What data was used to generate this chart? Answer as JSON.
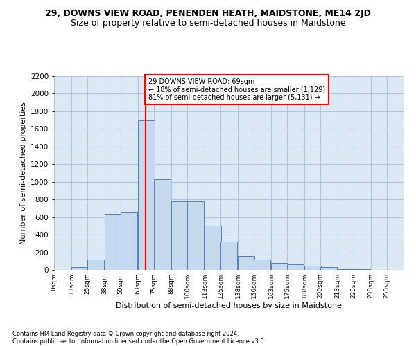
{
  "title": "29, DOWNS VIEW ROAD, PENENDEN HEATH, MAIDSTONE, ME14 2JD",
  "subtitle": "Size of property relative to semi-detached houses in Maidstone",
  "xlabel": "Distribution of semi-detached houses by size in Maidstone",
  "ylabel": "Number of semi-detached properties",
  "footer_line1": "Contains HM Land Registry data © Crown copyright and database right 2024.",
  "footer_line2": "Contains public sector information licensed under the Open Government Licence v3.0.",
  "annotation_text": "29 DOWNS VIEW ROAD: 69sqm\n← 18% of semi-detached houses are smaller (1,129)\n81% of semi-detached houses are larger (5,131) →",
  "bar_left_edges": [
    0,
    13,
    25,
    38,
    50,
    63,
    75,
    88,
    100,
    113,
    125,
    138,
    150,
    163,
    175,
    188,
    200,
    213,
    225,
    238
  ],
  "bar_heights": [
    0,
    30,
    120,
    640,
    650,
    1700,
    1030,
    780,
    780,
    500,
    320,
    160,
    115,
    80,
    60,
    50,
    30,
    10,
    5,
    2
  ],
  "bar_width": 12.5,
  "bar_face_color": "#c5d8ed",
  "bar_edge_color": "#4f81bd",
  "vline_x": 69,
  "vline_color": "red",
  "ylim": [
    0,
    2200
  ],
  "xlim_min": 0,
  "xlim_max": 262.5,
  "yticks": [
    0,
    200,
    400,
    600,
    800,
    1000,
    1200,
    1400,
    1600,
    1800,
    2000,
    2200
  ],
  "xtick_labels": [
    "0sqm",
    "13sqm",
    "25sqm",
    "38sqm",
    "50sqm",
    "63sqm",
    "75sqm",
    "88sqm",
    "100sqm",
    "113sqm",
    "125sqm",
    "138sqm",
    "150sqm",
    "163sqm",
    "175sqm",
    "188sqm",
    "200sqm",
    "213sqm",
    "225sqm",
    "238sqm",
    "250sqm"
  ],
  "xtick_positions": [
    0,
    13,
    25,
    38,
    50,
    63,
    75,
    88,
    100,
    113,
    125,
    138,
    150,
    163,
    175,
    188,
    200,
    213,
    225,
    238,
    250
  ],
  "grid_color": "#b0c4de",
  "bg_color": "#dce9f5",
  "annotation_box_color": "white",
  "annotation_box_edge": "red",
  "title_fontsize": 9,
  "subtitle_fontsize": 9,
  "ylabel_fontsize": 8,
  "xlabel_fontsize": 8,
  "footer_fontsize": 6
}
